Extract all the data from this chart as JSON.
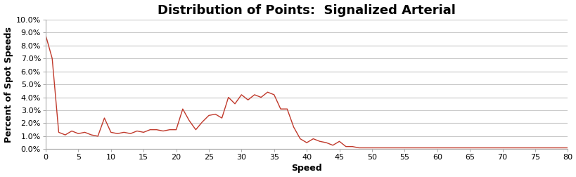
{
  "title": "Distribution of Points:  Signalized Arterial",
  "xlabel": "Speed",
  "ylabel": "Percent of Spot Speeds",
  "line_color": "#C0392B",
  "background_color": "#FFFFFF",
  "plot_bg_color": "#FFFFFF",
  "grid_color": "#C8C8C8",
  "xlim": [
    0,
    80
  ],
  "ylim": [
    0,
    0.1
  ],
  "xticks": [
    0,
    5,
    10,
    15,
    20,
    25,
    30,
    35,
    40,
    45,
    50,
    55,
    60,
    65,
    70,
    75,
    80
  ],
  "yticks": [
    0.0,
    0.01,
    0.02,
    0.03,
    0.04,
    0.05,
    0.06,
    0.07,
    0.08,
    0.09,
    0.1
  ],
  "speeds": [
    0,
    1,
    2,
    3,
    4,
    5,
    6,
    7,
    8,
    9,
    10,
    11,
    12,
    13,
    14,
    15,
    16,
    17,
    18,
    19,
    20,
    21,
    22,
    23,
    24,
    25,
    26,
    27,
    28,
    29,
    30,
    31,
    32,
    33,
    34,
    35,
    36,
    37,
    38,
    39,
    40,
    41,
    42,
    43,
    44,
    45,
    46,
    47,
    48,
    49,
    50,
    51,
    52,
    53,
    54,
    55,
    56,
    57,
    58,
    59,
    60,
    61,
    62,
    63,
    64,
    65,
    66,
    67,
    68,
    69,
    70,
    71,
    72,
    73,
    74,
    75,
    76,
    77,
    78,
    79,
    80
  ],
  "percents": [
    0.088,
    0.07,
    0.013,
    0.011,
    0.014,
    0.012,
    0.013,
    0.011,
    0.01,
    0.024,
    0.013,
    0.012,
    0.013,
    0.012,
    0.014,
    0.013,
    0.015,
    0.015,
    0.014,
    0.015,
    0.015,
    0.031,
    0.022,
    0.015,
    0.021,
    0.026,
    0.027,
    0.024,
    0.04,
    0.035,
    0.042,
    0.038,
    0.042,
    0.04,
    0.044,
    0.042,
    0.031,
    0.031,
    0.017,
    0.008,
    0.005,
    0.008,
    0.006,
    0.005,
    0.003,
    0.006,
    0.002,
    0.002,
    0.001,
    0.001,
    0.001,
    0.001,
    0.001,
    0.001,
    0.001,
    0.001,
    0.001,
    0.001,
    0.001,
    0.001,
    0.001,
    0.001,
    0.001,
    0.001,
    0.001,
    0.001,
    0.001,
    0.001,
    0.001,
    0.001,
    0.001,
    0.001,
    0.001,
    0.001,
    0.001,
    0.001,
    0.001,
    0.001,
    0.001,
    0.001,
    0.001
  ],
  "title_fontsize": 13,
  "label_fontsize": 9,
  "tick_fontsize": 8
}
